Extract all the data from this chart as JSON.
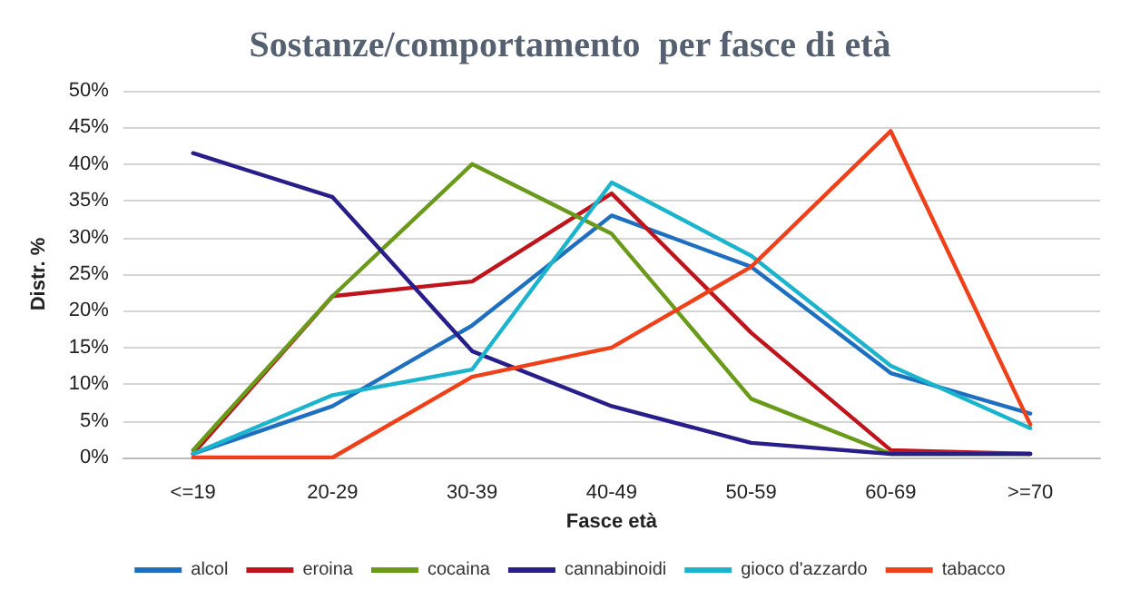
{
  "chart_data": {
    "type": "line",
    "title": "Sostanze/comportamento  per fasce di età",
    "xlabel": "Fasce età",
    "ylabel": "Distr. %",
    "categories": [
      "<=19",
      "20-29",
      "30-39",
      "40-49",
      "50-59",
      "60-69",
      ">=70"
    ],
    "series": [
      {
        "name": "alcol",
        "color": "#1f6fc0",
        "values": [
          0.5,
          7,
          18,
          33,
          26,
          11.5,
          6
        ]
      },
      {
        "name": "eroina",
        "color": "#c0141c",
        "values": [
          0.5,
          22,
          24,
          36,
          17,
          1,
          0.5
        ]
      },
      {
        "name": "cocaina",
        "color": "#6a9a1a",
        "values": [
          1,
          22,
          40,
          30.5,
          8,
          0.5,
          0.5
        ]
      },
      {
        "name": "cannabinoidi",
        "color": "#281e8a",
        "values": [
          41.5,
          35.5,
          14.5,
          7,
          2,
          0.5,
          0.5
        ]
      },
      {
        "name": "gioco d'azzardo",
        "color": "#1ab4cc",
        "values": [
          0.5,
          8.5,
          12,
          37.5,
          27.5,
          12.5,
          4
        ]
      },
      {
        "name": "tabacco",
        "color": "#f0401a",
        "values": [
          0,
          0,
          11,
          15,
          26,
          44.5,
          4.5
        ]
      }
    ],
    "ylim": [
      0,
      50
    ],
    "yticks": [
      {
        "value": 0,
        "label": "0%"
      },
      {
        "value": 5,
        "label": "5%"
      },
      {
        "value": 10,
        "label": "10%"
      },
      {
        "value": 15,
        "label": "15%"
      },
      {
        "value": 20,
        "label": "20%"
      },
      {
        "value": 25,
        "label": "25%"
      },
      {
        "value": 30,
        "label": "30%"
      },
      {
        "value": 35,
        "label": "35%"
      },
      {
        "value": 40,
        "label": "40%"
      },
      {
        "value": 45,
        "label": "45%"
      },
      {
        "value": 50,
        "label": "50%"
      }
    ],
    "grid": "y",
    "legend": "bottom",
    "marker": "none",
    "line_style": "solid"
  }
}
